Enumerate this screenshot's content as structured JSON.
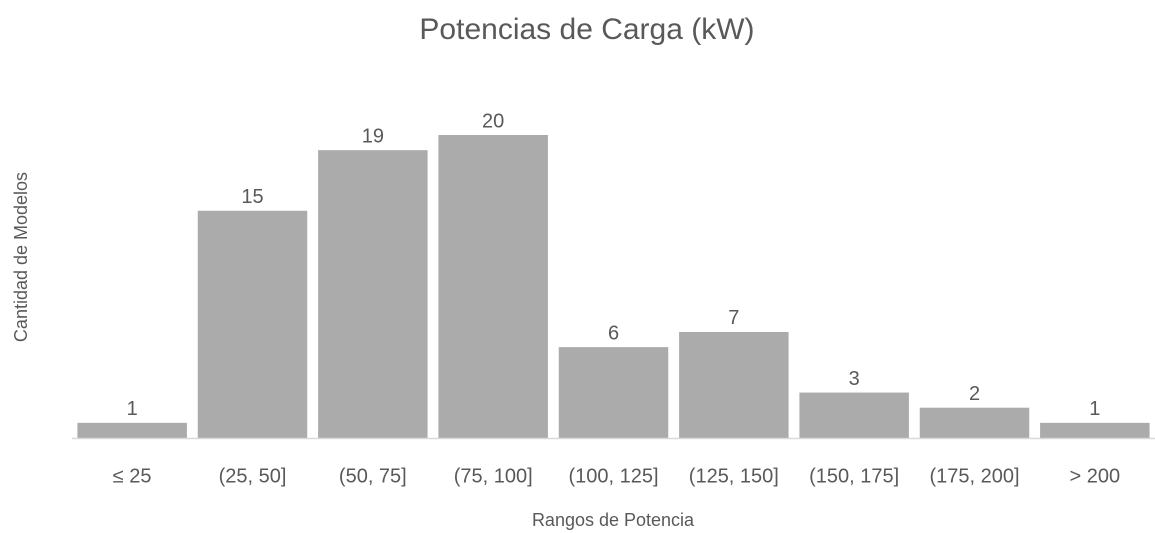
{
  "chart_data": {
    "type": "bar",
    "title": "Potencias de Carga (kW)",
    "x_label": "Rangos de Potencia",
    "y_label": "Cantidad de Modelos",
    "categories": [
      "≤ 25",
      "(25, 50]",
      "(50, 75]",
      "(75, 100]",
      "(100, 125]",
      "(125, 150]",
      "(150, 175]",
      "(175, 200]",
      "> 200"
    ],
    "values": [
      1,
      15,
      19,
      20,
      6,
      7,
      3,
      2,
      1
    ],
    "color": "#ababab"
  }
}
